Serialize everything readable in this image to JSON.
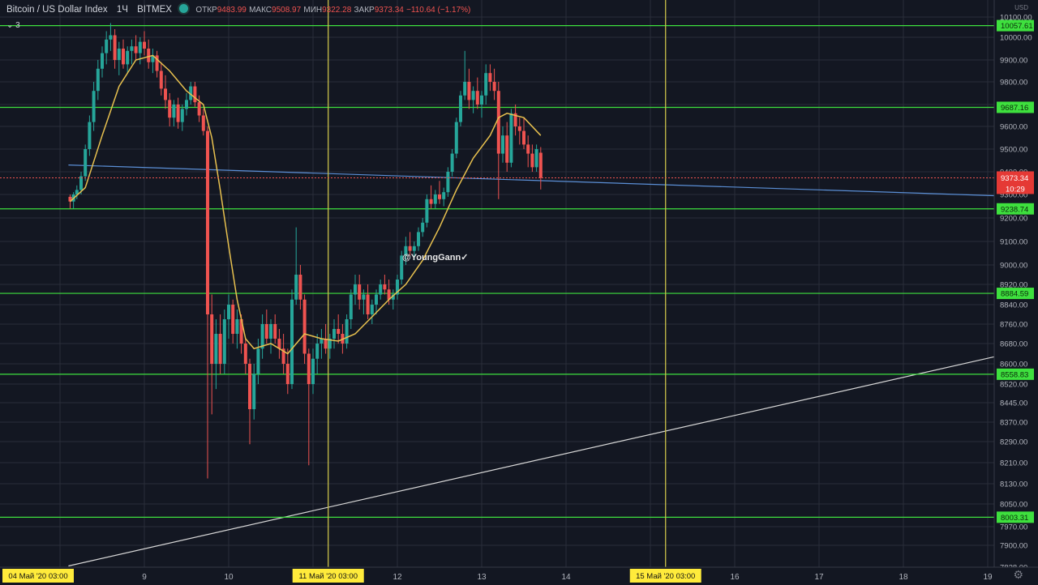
{
  "header": {
    "symbol": "Bitcoin / US Dollar Index",
    "interval": "1Ч",
    "exchange": "BITMEX",
    "open_label": "ОТКР",
    "open_value": "9483.99",
    "high_label": "МАКС",
    "high_value": "9508.97",
    "low_label": "МИН",
    "low_value": "9322.28",
    "close_label": "ЗАКР",
    "close_value": "9373.34",
    "change": "−110.64 (−1.17%)"
  },
  "indicator_toggle": {
    "icon": "chevron-down-icon",
    "label": "3"
  },
  "watermark": "@YoungGann✓",
  "colors": {
    "background": "#131722",
    "grid": "#2a2e39",
    "up": "#26a69a",
    "down": "#ef5350",
    "ma": "#e8c14f",
    "level": "#3ee03e",
    "vline": "#c9c04a",
    "trend_blue": "#5b8fd6",
    "trend_white": "#d8d8d8"
  },
  "chart_data": {
    "type": "candlestick",
    "title": "",
    "currency_label": "USD",
    "yticks": [
      10100,
      10000,
      9900,
      9800,
      9700,
      9600,
      9500,
      9400,
      9300,
      9200,
      9100,
      9000,
      8920,
      8840,
      8760,
      8680,
      8600,
      8520,
      8445,
      8370,
      8290,
      8210,
      8130,
      8050,
      7970,
      7900,
      7828
    ],
    "xticks": [
      {
        "label": "9",
        "x": 9.0
      },
      {
        "label": "10",
        "x": 10.0
      },
      {
        "label": "12",
        "x": 12.0
      },
      {
        "label": "13",
        "x": 13.0
      },
      {
        "label": "14",
        "x": 14.0
      },
      {
        "label": "16",
        "x": 16.0
      },
      {
        "label": "17",
        "x": 17.0
      },
      {
        "label": "18",
        "x": 18.0
      },
      {
        "label": "19",
        "x": 19.0
      }
    ],
    "time_markers": [
      {
        "label": "04 Май '20   03:00",
        "x": 8.12
      },
      {
        "label": "11 Май '20   03:00",
        "x": 11.18
      },
      {
        "label": "15 Май '20   03:00",
        "x": 15.18
      }
    ],
    "horizontal_levels": [
      10057.61,
      9687.16,
      9238.74,
      8884.59,
      8558.83,
      8003.31
    ],
    "last_price": {
      "value": "9373.34",
      "timer": "10:29"
    },
    "trendlines": [
      {
        "name": "blue",
        "from": {
          "x": 8.1,
          "y": 9430
        },
        "to": {
          "x": 19.9,
          "y": 9285
        }
      },
      {
        "name": "white",
        "from": {
          "x": 8.1,
          "y": 7832
        },
        "to": {
          "x": 19.9,
          "y": 8690
        }
      }
    ],
    "candles": [
      [
        8.12,
        9290,
        9300,
        9240,
        9270
      ],
      [
        8.16,
        9270,
        9310,
        9240,
        9300
      ],
      [
        8.2,
        9300,
        9340,
        9280,
        9320
      ],
      [
        8.25,
        9320,
        9400,
        9300,
        9380
      ],
      [
        8.3,
        9380,
        9520,
        9360,
        9500
      ],
      [
        8.35,
        9500,
        9650,
        9470,
        9620
      ],
      [
        8.4,
        9620,
        9800,
        9580,
        9760
      ],
      [
        8.45,
        9760,
        9900,
        9720,
        9860
      ],
      [
        8.5,
        9860,
        9960,
        9820,
        9930
      ],
      [
        8.55,
        9930,
        10030,
        9880,
        9990
      ],
      [
        8.6,
        9990,
        10070,
        9940,
        10010
      ],
      [
        8.65,
        10010,
        10040,
        9860,
        9900
      ],
      [
        8.7,
        9900,
        9980,
        9830,
        9950
      ],
      [
        8.75,
        9950,
        9990,
        9860,
        9880
      ],
      [
        8.8,
        9880,
        9960,
        9840,
        9940
      ],
      [
        8.85,
        9940,
        9990,
        9880,
        9960
      ],
      [
        8.9,
        9960,
        10010,
        9900,
        9930
      ],
      [
        8.95,
        9930,
        10000,
        9880,
        9980
      ],
      [
        9.0,
        9980,
        10030,
        9920,
        9950
      ],
      [
        9.05,
        9950,
        9990,
        9860,
        9890
      ],
      [
        9.1,
        9890,
        9950,
        9840,
        9920
      ],
      [
        9.15,
        9920,
        9940,
        9820,
        9850
      ],
      [
        9.2,
        9850,
        9890,
        9740,
        9770
      ],
      [
        9.25,
        9770,
        9830,
        9680,
        9720
      ],
      [
        9.3,
        9720,
        9750,
        9600,
        9640
      ],
      [
        9.35,
        9640,
        9720,
        9600,
        9700
      ],
      [
        9.4,
        9700,
        9730,
        9590,
        9620
      ],
      [
        9.45,
        9620,
        9700,
        9580,
        9680
      ],
      [
        9.5,
        9680,
        9750,
        9650,
        9720
      ],
      [
        9.55,
        9720,
        9800,
        9700,
        9780
      ],
      [
        9.6,
        9780,
        9800,
        9690,
        9710
      ],
      [
        9.65,
        9710,
        9740,
        9620,
        9650
      ],
      [
        9.7,
        9650,
        9680,
        9560,
        9580
      ],
      [
        9.75,
        9580,
        9600,
        8150,
        8800
      ],
      [
        9.8,
        8800,
        8880,
        8400,
        8600
      ],
      [
        9.85,
        8600,
        8780,
        8500,
        8720
      ],
      [
        9.9,
        8720,
        8800,
        8560,
        8600
      ],
      [
        9.95,
        8600,
        8820,
        8560,
        8780
      ],
      [
        10.0,
        8780,
        8880,
        8700,
        8840
      ],
      [
        10.05,
        8840,
        8860,
        8680,
        8720
      ],
      [
        10.1,
        8720,
        8820,
        8660,
        8780
      ],
      [
        10.15,
        8780,
        8800,
        8640,
        8680
      ],
      [
        10.2,
        8680,
        8700,
        8560,
        8600
      ],
      [
        10.25,
        8600,
        8620,
        8280,
        8420
      ],
      [
        10.3,
        8420,
        8600,
        8380,
        8560
      ],
      [
        10.35,
        8560,
        8700,
        8520,
        8660
      ],
      [
        10.4,
        8660,
        8800,
        8620,
        8760
      ],
      [
        10.45,
        8760,
        8820,
        8680,
        8700
      ],
      [
        10.5,
        8700,
        8780,
        8640,
        8760
      ],
      [
        10.55,
        8760,
        8800,
        8680,
        8700
      ],
      [
        10.6,
        8700,
        8740,
        8620,
        8660
      ],
      [
        10.65,
        8660,
        8720,
        8560,
        8600
      ],
      [
        10.7,
        8600,
        8660,
        8480,
        8520
      ],
      [
        10.75,
        8520,
        8900,
        8500,
        8860
      ],
      [
        10.8,
        8860,
        9160,
        8840,
        8960
      ],
      [
        10.85,
        8960,
        9000,
        8820,
        8860
      ],
      [
        10.9,
        8860,
        8880,
        8600,
        8640
      ],
      [
        10.95,
        8640,
        8660,
        8200,
        8520
      ],
      [
        11.0,
        8520,
        8660,
        8480,
        8620
      ],
      [
        11.05,
        8620,
        8720,
        8560,
        8680
      ],
      [
        11.1,
        8680,
        8740,
        8620,
        8700
      ],
      [
        11.15,
        8700,
        8760,
        8640,
        8660
      ],
      [
        11.2,
        8660,
        8720,
        8620,
        8700
      ],
      [
        11.25,
        8700,
        8780,
        8660,
        8740
      ],
      [
        11.3,
        8740,
        8800,
        8680,
        8720
      ],
      [
        11.35,
        8720,
        8760,
        8640,
        8680
      ],
      [
        11.4,
        8680,
        8800,
        8660,
        8780
      ],
      [
        11.45,
        8780,
        8900,
        8740,
        8880
      ],
      [
        11.5,
        8880,
        8960,
        8840,
        8920
      ],
      [
        11.55,
        8920,
        8960,
        8820,
        8860
      ],
      [
        11.6,
        8860,
        8900,
        8800,
        8880
      ],
      [
        11.65,
        8880,
        8920,
        8780,
        8800
      ],
      [
        11.7,
        8800,
        8860,
        8760,
        8840
      ],
      [
        11.75,
        8840,
        8900,
        8800,
        8880
      ],
      [
        11.8,
        8880,
        8940,
        8860,
        8920
      ],
      [
        11.85,
        8920,
        8960,
        8880,
        8900
      ],
      [
        11.9,
        8900,
        8940,
        8840,
        8860
      ],
      [
        11.95,
        8860,
        8900,
        8820,
        8880
      ],
      [
        12.0,
        8880,
        8960,
        8860,
        8940
      ],
      [
        12.05,
        8940,
        9060,
        8920,
        9040
      ],
      [
        12.1,
        9040,
        9120,
        9000,
        9080
      ],
      [
        12.15,
        9080,
        9140,
        9040,
        9060
      ],
      [
        12.2,
        9060,
        9100,
        9020,
        9080
      ],
      [
        12.25,
        9080,
        9160,
        9060,
        9140
      ],
      [
        12.3,
        9140,
        9200,
        9120,
        9180
      ],
      [
        12.35,
        9180,
        9300,
        9160,
        9280
      ],
      [
        12.4,
        9280,
        9340,
        9240,
        9260
      ],
      [
        12.45,
        9260,
        9320,
        9240,
        9300
      ],
      [
        12.5,
        9300,
        9360,
        9260,
        9280
      ],
      [
        12.55,
        9280,
        9330,
        9250,
        9310
      ],
      [
        12.6,
        9310,
        9420,
        9290,
        9400
      ],
      [
        12.65,
        9400,
        9500,
        9380,
        9480
      ],
      [
        12.7,
        9480,
        9640,
        9460,
        9620
      ],
      [
        12.75,
        9620,
        9760,
        9600,
        9740
      ],
      [
        12.8,
        9740,
        9940,
        9720,
        9800
      ],
      [
        12.85,
        9800,
        9860,
        9680,
        9720
      ],
      [
        12.9,
        9720,
        9780,
        9660,
        9760
      ],
      [
        12.95,
        9760,
        9820,
        9680,
        9700
      ],
      [
        13.0,
        9700,
        9760,
        9640,
        9740
      ],
      [
        13.05,
        9740,
        9880,
        9700,
        9840
      ],
      [
        13.1,
        9840,
        9880,
        9760,
        9800
      ],
      [
        13.15,
        9800,
        9860,
        9720,
        9760
      ],
      [
        13.2,
        9760,
        9800,
        9280,
        9480
      ],
      [
        13.25,
        9480,
        9600,
        9440,
        9560
      ],
      [
        13.3,
        9560,
        9620,
        9400,
        9440
      ],
      [
        13.35,
        9440,
        9680,
        9420,
        9660
      ],
      [
        13.4,
        9660,
        9700,
        9560,
        9600
      ],
      [
        13.45,
        9600,
        9640,
        9520,
        9580
      ],
      [
        13.5,
        9580,
        9640,
        9500,
        9520
      ],
      [
        13.55,
        9520,
        9560,
        9420,
        9480
      ],
      [
        13.6,
        9480,
        9520,
        9400,
        9420
      ],
      [
        13.65,
        9420,
        9520,
        9400,
        9500
      ],
      [
        13.7,
        9484,
        9509,
        9322,
        9373
      ]
    ],
    "ma": [
      [
        8.12,
        9270
      ],
      [
        8.3,
        9330
      ],
      [
        8.5,
        9560
      ],
      [
        8.7,
        9780
      ],
      [
        8.9,
        9900
      ],
      [
        9.1,
        9920
      ],
      [
        9.3,
        9850
      ],
      [
        9.5,
        9760
      ],
      [
        9.7,
        9700
      ],
      [
        9.8,
        9550
      ],
      [
        9.9,
        9320
      ],
      [
        10.0,
        9080
      ],
      [
        10.1,
        8860
      ],
      [
        10.2,
        8700
      ],
      [
        10.3,
        8660
      ],
      [
        10.5,
        8680
      ],
      [
        10.7,
        8640
      ],
      [
        10.9,
        8720
      ],
      [
        11.1,
        8700
      ],
      [
        11.3,
        8690
      ],
      [
        11.5,
        8720
      ],
      [
        11.7,
        8790
      ],
      [
        11.9,
        8860
      ],
      [
        12.1,
        8920
      ],
      [
        12.3,
        9020
      ],
      [
        12.5,
        9160
      ],
      [
        12.7,
        9320
      ],
      [
        12.9,
        9460
      ],
      [
        13.1,
        9560
      ],
      [
        13.2,
        9640
      ],
      [
        13.3,
        9660
      ],
      [
        13.5,
        9640
      ],
      [
        13.7,
        9560
      ]
    ]
  }
}
